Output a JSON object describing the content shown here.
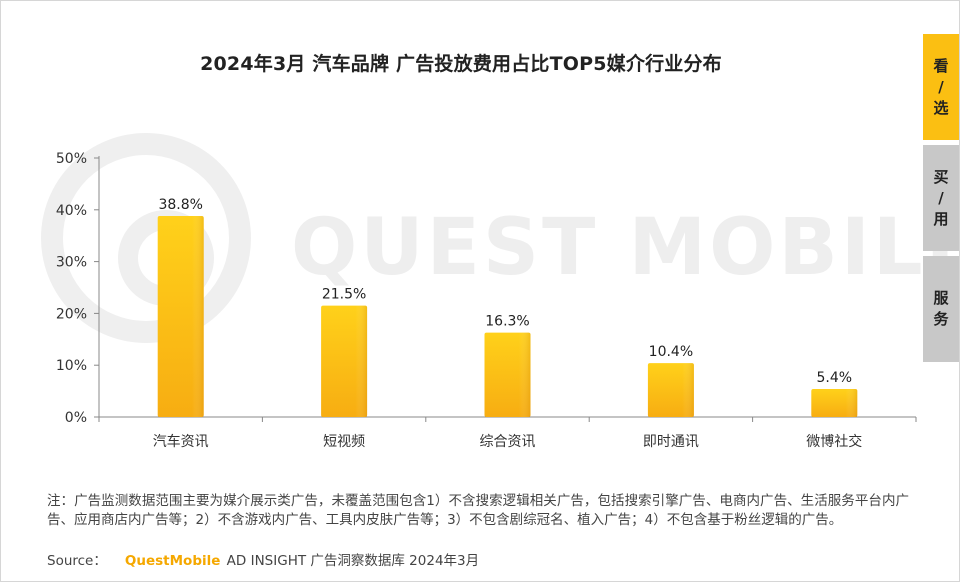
{
  "title": "2024年3月 汽车品牌 广告投放费用占比TOP5媒介行业分布",
  "watermark_text": "QUEST MOBILE",
  "side_tabs": [
    {
      "chars": [
        "看",
        "/",
        "选"
      ],
      "active": true
    },
    {
      "chars": [
        "买",
        "/",
        "用"
      ],
      "active": false
    },
    {
      "chars": [
        "服",
        "务"
      ],
      "active": false
    }
  ],
  "note": "注：广告监测数据范围主要为媒介展示类广告，未覆盖范围包含1）不含搜索逻辑相关广告，包括搜索引擎广告、电商内广告、生活服务平台内广告、应用商店内广告等；2）不含游戏内广告、工具内皮肤广告等；3）不包含剧综冠名、植入广告；4）不包含基于粉丝逻辑的广告。",
  "source": {
    "label": "Source：",
    "brand": "QuestMobile",
    "rest": " AD INSIGHT 广告洞察数据库 2024年3月"
  },
  "colors": {
    "bar_top": "#ffd11a",
    "bar_bottom": "#f7ad12",
    "accent": "#fbbf12"
  },
  "chart_data": {
    "type": "bar",
    "categories": [
      "汽车资讯",
      "短视频",
      "综合资讯",
      "即时通讯",
      "微博社交"
    ],
    "values": [
      38.8,
      21.5,
      16.3,
      10.4,
      5.4
    ],
    "value_labels": [
      "38.8%",
      "21.5%",
      "16.3%",
      "10.4%",
      "5.4%"
    ],
    "ylim": [
      0,
      50
    ],
    "yticks": [
      0,
      10,
      20,
      30,
      40,
      50
    ],
    "ytick_labels": [
      "0%",
      "10%",
      "20%",
      "30%",
      "40%",
      "50%"
    ],
    "grid": false,
    "legend": "none"
  }
}
